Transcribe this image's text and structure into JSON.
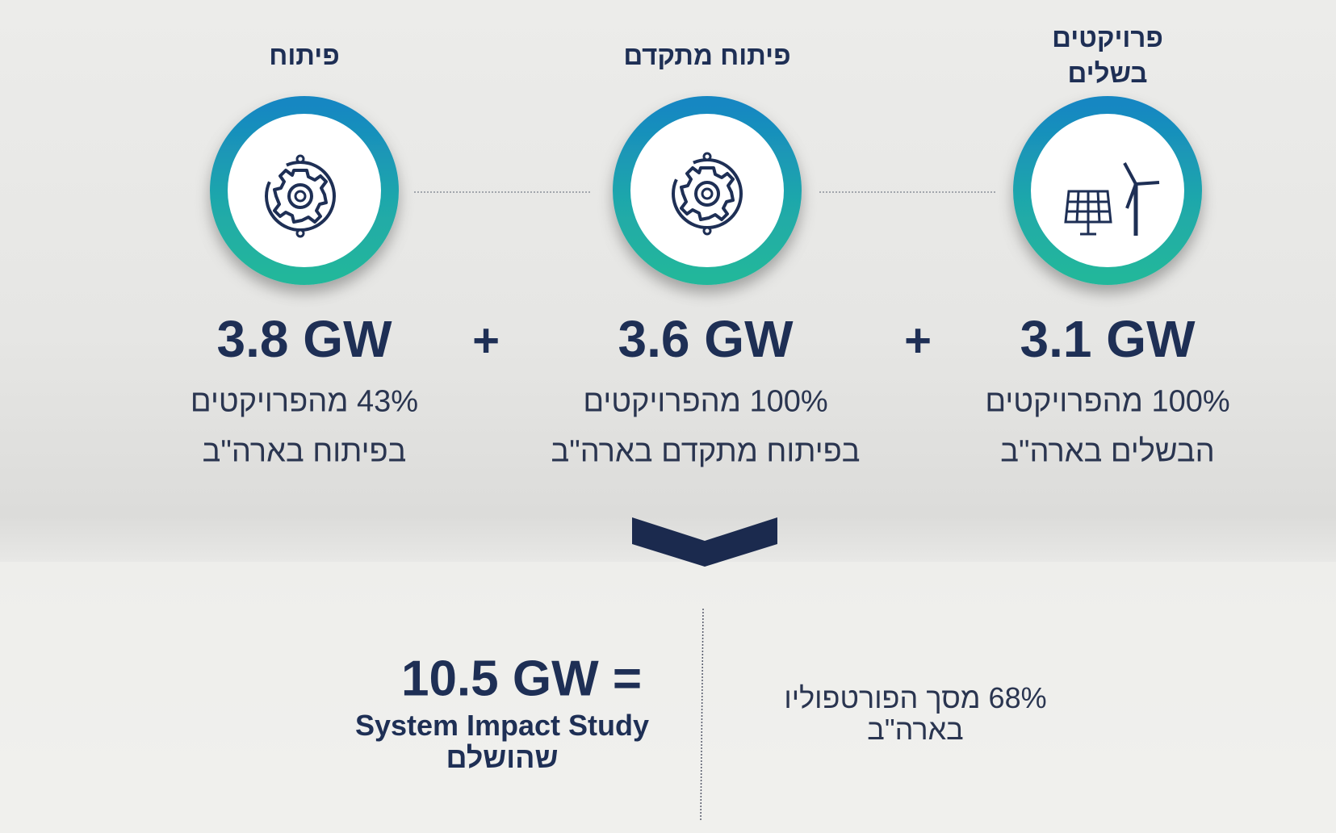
{
  "columns": [
    {
      "title": [
        "פרויקטים",
        "בשלים"
      ],
      "value": "3.1 GW",
      "description": [
        "100% מהפרויקטים",
        "הבשלים בארה\"ב"
      ]
    },
    {
      "title": "פיתוח מתקדם",
      "value": "3.6 GW",
      "description": [
        "100% מהפרויקטים",
        "בפיתוח מתקדם בארה\"ב"
      ]
    },
    {
      "title": "פיתוח",
      "value": "3.8 GW",
      "description": [
        "43% מהפרויקטים",
        "בפיתוח בארה\"ב"
      ]
    }
  ],
  "operators": [
    "+",
    "+"
  ],
  "total": {
    "value": "10.5 GW =",
    "label": [
      "System Impact Study",
      "שהושלם"
    ]
  },
  "share": [
    "68% מסך הפורטפוליו",
    "בארה\"ב"
  ]
}
